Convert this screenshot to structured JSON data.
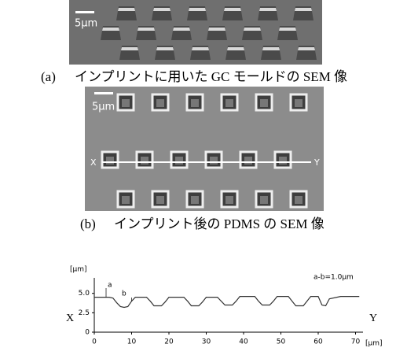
{
  "figure_a": {
    "scale_label": "5μm",
    "caption_label": "(a)",
    "caption_text": "インプリントに用いた GC モールドの SEM 像"
  },
  "figure_b": {
    "scale_label": "5μm",
    "line_start": "X",
    "line_end": "Y",
    "caption_label": "(b)",
    "caption_text": "インプリント後の PDMS の SEM 像"
  },
  "chart_data": {
    "type": "line",
    "y_unit": "[μm]",
    "x_unit": "[μm]",
    "left_label": "X",
    "right_label": "Y",
    "annotations": [
      "a",
      "b",
      "a-b=1.0μm"
    ],
    "x": [
      0,
      4,
      5,
      6,
      7,
      8,
      9,
      10,
      11,
      14,
      15,
      16,
      18,
      19,
      20,
      24,
      25,
      26,
      28,
      29,
      30,
      33,
      34,
      35,
      37,
      38,
      39,
      43,
      44,
      45,
      47,
      48,
      49,
      52,
      53,
      54,
      56,
      57,
      58,
      60,
      61,
      62,
      63,
      66,
      71
    ],
    "values": [
      4.5,
      4.5,
      4.4,
      3.8,
      3.3,
      3.2,
      3.3,
      4.0,
      4.5,
      4.5,
      4.0,
      3.4,
      3.4,
      3.9,
      4.5,
      4.5,
      4.0,
      3.4,
      3.4,
      3.9,
      4.5,
      4.5,
      4.0,
      3.5,
      3.5,
      4.0,
      4.6,
      4.6,
      4.0,
      3.5,
      3.5,
      4.0,
      4.6,
      4.6,
      4.0,
      3.4,
      3.4,
      4.0,
      4.6,
      4.6,
      3.5,
      3.4,
      4.3,
      4.6,
      4.6
    ],
    "color": "#333333",
    "xlim": [
      0,
      72
    ],
    "xticks": [
      0,
      10,
      20,
      30,
      40,
      50,
      60,
      70
    ],
    "ylim": [
      0,
      7
    ],
    "yticks": [
      0,
      2.5,
      {
        "value": 5,
        "label": "5.0"
      }
    ]
  }
}
